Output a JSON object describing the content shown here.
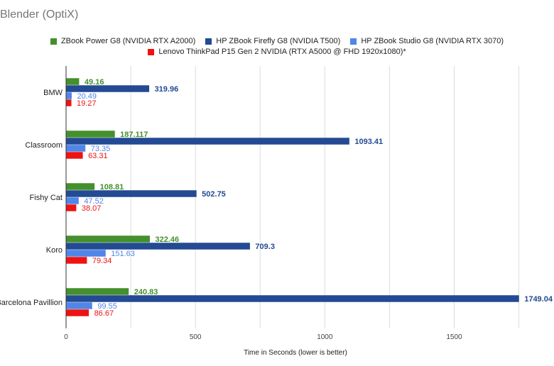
{
  "chart_data": {
    "type": "bar",
    "orientation": "horizontal",
    "title": "Blender (OptiX)",
    "xlabel": "Time in Seconds (lower is better)",
    "ylabel": "",
    "xlim": [
      0,
      1850
    ],
    "xticks": [
      0,
      500,
      1000,
      1500
    ],
    "grid": true,
    "legend_position": "top",
    "categories": [
      "BMW",
      "Classroom",
      "Fishy Cat",
      "Koro",
      "Barcelona Pavillion"
    ],
    "series": [
      {
        "name": "ZBook Power G8 (NVIDIA RTX A2000)",
        "color": "#43902c",
        "values": [
          49.16,
          187.117,
          108.81,
          322.46,
          240.83
        ]
      },
      {
        "name": "HP ZBook Firefly G8 (NVIDIA T500)",
        "color": "#234a93",
        "values": [
          319.96,
          1093.41,
          502.75,
          709.3,
          1749.04
        ]
      },
      {
        "name": "HP ZBook Studio G8 (NVIDIA RTX 3070)",
        "color": "#4f86e8",
        "values": [
          20.49,
          73.35,
          47.52,
          151.63,
          99.55
        ]
      },
      {
        "name": "Lenovo ThinkPad P15 Gen 2 NVIDIA (RTX A5000 @ FHD 1920x1080)*",
        "color": "#ef1212",
        "values": [
          19.27,
          63.31,
          38.07,
          79.34,
          86.67
        ]
      }
    ]
  }
}
